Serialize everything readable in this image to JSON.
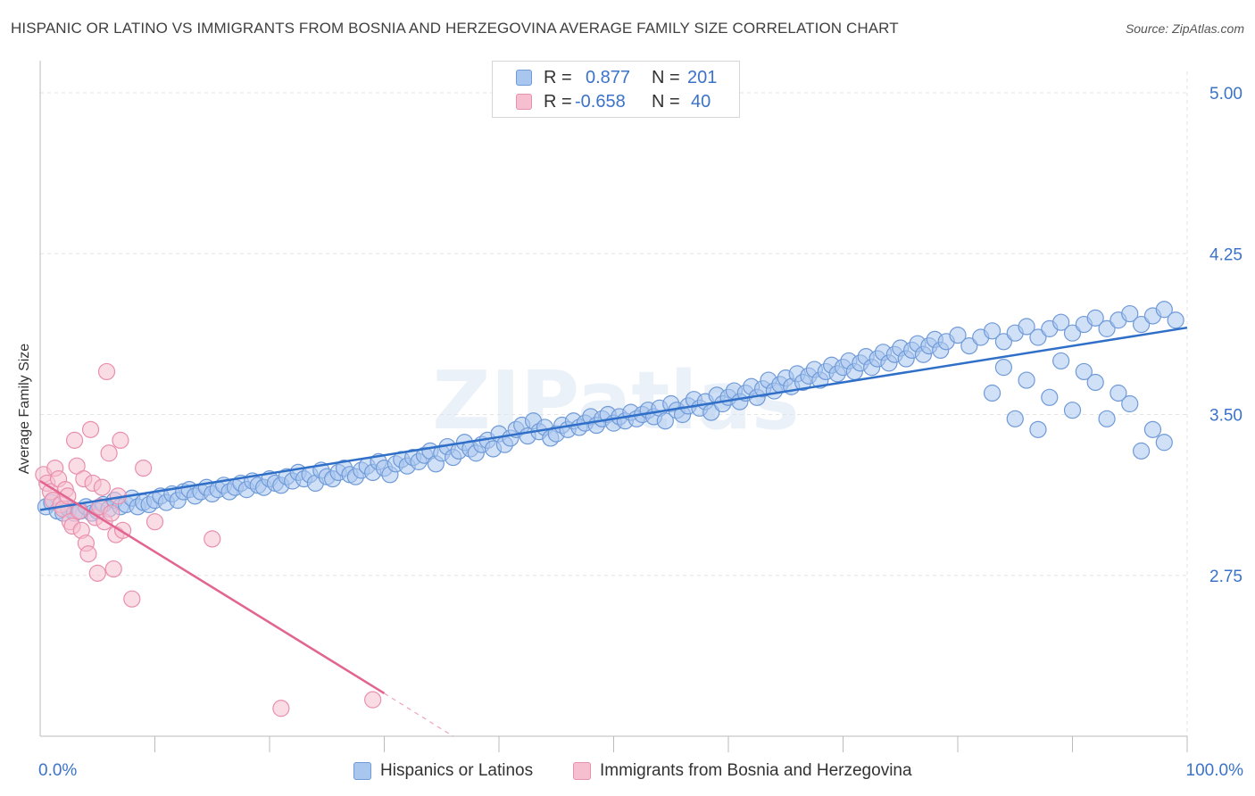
{
  "header": {
    "title": "HISPANIC OR LATINO VS IMMIGRANTS FROM BOSNIA AND HERZEGOVINA AVERAGE FAMILY SIZE CORRELATION CHART",
    "source": "Source: ZipAtlas.com"
  },
  "watermark": "ZIPatlas",
  "stats_legend": {
    "r_label": "R =",
    "n_label": "N =",
    "rows": [
      {
        "r": "0.877",
        "n": "201"
      },
      {
        "r": "-0.658",
        "n": "40"
      }
    ]
  },
  "colors": {
    "blue_fill": "#a9c6ef",
    "blue_stroke": "#6f9ad8",
    "blue_line": "#2f6fc8",
    "pink_fill": "#f6bfd0",
    "pink_stroke": "#e98fae",
    "pink_line": "#e26591",
    "axis_text": "#3b73c9"
  },
  "chart_data": {
    "type": "scatter",
    "title": "HISPANIC OR LATINO VS IMMIGRANTS FROM BOSNIA AND HERZEGOVINA AVERAGE FAMILY SIZE CORRELATION CHART",
    "xlabel": "",
    "ylabel": "Average Family Size",
    "xlim": [
      0,
      100
    ],
    "ylim": [
      2.0,
      5.1
    ],
    "x_tick_labels": [
      "0.0%",
      "100.0%"
    ],
    "y_ticks": [
      2.75,
      3.5,
      4.25,
      5.0
    ],
    "y_tick_labels": [
      "2.75",
      "3.50",
      "4.25",
      "5.00"
    ],
    "grid": true,
    "legend_position": "bottom-center",
    "series": [
      {
        "name": "Hispanics or Latinos",
        "color": "#a9c6ef",
        "trend": {
          "x": [
            0,
            100
          ],
          "y": [
            3.055,
            3.905
          ]
        },
        "points": [
          [
            0.5,
            3.07
          ],
          [
            1,
            3.09
          ],
          [
            1.5,
            3.05
          ],
          [
            2,
            3.04
          ],
          [
            2.5,
            3.06
          ],
          [
            3,
            3.04
          ],
          [
            3.5,
            3.05
          ],
          [
            4,
            3.07
          ],
          [
            4.5,
            3.04
          ],
          [
            5,
            3.05
          ],
          [
            5.5,
            3.08
          ],
          [
            6,
            3.06
          ],
          [
            6.5,
            3.1
          ],
          [
            7,
            3.07
          ],
          [
            7.5,
            3.08
          ],
          [
            8,
            3.11
          ],
          [
            8.5,
            3.07
          ],
          [
            9,
            3.09
          ],
          [
            9.5,
            3.08
          ],
          [
            10,
            3.1
          ],
          [
            10.5,
            3.12
          ],
          [
            11,
            3.09
          ],
          [
            11.5,
            3.13
          ],
          [
            12,
            3.1
          ],
          [
            12.5,
            3.14
          ],
          [
            13,
            3.15
          ],
          [
            13.5,
            3.12
          ],
          [
            14,
            3.14
          ],
          [
            14.5,
            3.16
          ],
          [
            15,
            3.13
          ],
          [
            15.5,
            3.15
          ],
          [
            16,
            3.17
          ],
          [
            16.5,
            3.14
          ],
          [
            17,
            3.16
          ],
          [
            17.5,
            3.18
          ],
          [
            18,
            3.15
          ],
          [
            18.5,
            3.19
          ],
          [
            19,
            3.17
          ],
          [
            19.5,
            3.16
          ],
          [
            20,
            3.2
          ],
          [
            20.5,
            3.18
          ],
          [
            21,
            3.17
          ],
          [
            21.5,
            3.21
          ],
          [
            22,
            3.19
          ],
          [
            22.5,
            3.23
          ],
          [
            23,
            3.2
          ],
          [
            23.5,
            3.22
          ],
          [
            24,
            3.18
          ],
          [
            24.5,
            3.24
          ],
          [
            25,
            3.21
          ],
          [
            25.5,
            3.2
          ],
          [
            26,
            3.23
          ],
          [
            26.5,
            3.25
          ],
          [
            27,
            3.22
          ],
          [
            27.5,
            3.21
          ],
          [
            28,
            3.24
          ],
          [
            28.5,
            3.26
          ],
          [
            29,
            3.23
          ],
          [
            29.5,
            3.28
          ],
          [
            30,
            3.25
          ],
          [
            30.5,
            3.22
          ],
          [
            31,
            3.27
          ],
          [
            31.5,
            3.29
          ],
          [
            32,
            3.26
          ],
          [
            32.5,
            3.3
          ],
          [
            33,
            3.28
          ],
          [
            33.5,
            3.31
          ],
          [
            34,
            3.33
          ],
          [
            34.5,
            3.27
          ],
          [
            35,
            3.32
          ],
          [
            35.5,
            3.35
          ],
          [
            36,
            3.3
          ],
          [
            36.5,
            3.33
          ],
          [
            37,
            3.37
          ],
          [
            37.5,
            3.34
          ],
          [
            38,
            3.32
          ],
          [
            38.5,
            3.36
          ],
          [
            39,
            3.38
          ],
          [
            39.5,
            3.34
          ],
          [
            40,
            3.41
          ],
          [
            40.5,
            3.36
          ],
          [
            41,
            3.39
          ],
          [
            41.5,
            3.43
          ],
          [
            42,
            3.45
          ],
          [
            42.5,
            3.4
          ],
          [
            43,
            3.47
          ],
          [
            43.5,
            3.42
          ],
          [
            44,
            3.44
          ],
          [
            44.5,
            3.39
          ],
          [
            45,
            3.41
          ],
          [
            45.5,
            3.45
          ],
          [
            46,
            3.43
          ],
          [
            46.5,
            3.47
          ],
          [
            47,
            3.44
          ],
          [
            47.5,
            3.46
          ],
          [
            48,
            3.49
          ],
          [
            48.5,
            3.45
          ],
          [
            49,
            3.48
          ],
          [
            49.5,
            3.5
          ],
          [
            50,
            3.46
          ],
          [
            50.5,
            3.49
          ],
          [
            51,
            3.47
          ],
          [
            51.5,
            3.51
          ],
          [
            52,
            3.48
          ],
          [
            52.5,
            3.5
          ],
          [
            53,
            3.52
          ],
          [
            53.5,
            3.49
          ],
          [
            54,
            3.53
          ],
          [
            54.5,
            3.47
          ],
          [
            55,
            3.55
          ],
          [
            55.5,
            3.52
          ],
          [
            56,
            3.5
          ],
          [
            56.5,
            3.54
          ],
          [
            57,
            3.57
          ],
          [
            57.5,
            3.53
          ],
          [
            58,
            3.56
          ],
          [
            58.5,
            3.51
          ],
          [
            59,
            3.59
          ],
          [
            59.5,
            3.55
          ],
          [
            60,
            3.58
          ],
          [
            60.5,
            3.61
          ],
          [
            61,
            3.56
          ],
          [
            61.5,
            3.6
          ],
          [
            62,
            3.63
          ],
          [
            62.5,
            3.58
          ],
          [
            63,
            3.62
          ],
          [
            63.5,
            3.66
          ],
          [
            64,
            3.61
          ],
          [
            64.5,
            3.64
          ],
          [
            65,
            3.67
          ],
          [
            65.5,
            3.63
          ],
          [
            66,
            3.69
          ],
          [
            66.5,
            3.65
          ],
          [
            67,
            3.68
          ],
          [
            67.5,
            3.71
          ],
          [
            68,
            3.66
          ],
          [
            68.5,
            3.7
          ],
          [
            69,
            3.73
          ],
          [
            69.5,
            3.69
          ],
          [
            70,
            3.72
          ],
          [
            70.5,
            3.75
          ],
          [
            71,
            3.7
          ],
          [
            71.5,
            3.74
          ],
          [
            72,
            3.77
          ],
          [
            72.5,
            3.72
          ],
          [
            73,
            3.76
          ],
          [
            73.5,
            3.79
          ],
          [
            74,
            3.74
          ],
          [
            74.5,
            3.78
          ],
          [
            75,
            3.81
          ],
          [
            75.5,
            3.76
          ],
          [
            76,
            3.8
          ],
          [
            76.5,
            3.83
          ],
          [
            77,
            3.78
          ],
          [
            77.5,
            3.82
          ],
          [
            78,
            3.85
          ],
          [
            78.5,
            3.8
          ],
          [
            79,
            3.84
          ],
          [
            80,
            3.87
          ],
          [
            81,
            3.82
          ],
          [
            82,
            3.86
          ],
          [
            83,
            3.89
          ],
          [
            84,
            3.84
          ],
          [
            85,
            3.88
          ],
          [
            86,
            3.91
          ],
          [
            87,
            3.86
          ],
          [
            88,
            3.9
          ],
          [
            89,
            3.93
          ],
          [
            90,
            3.88
          ],
          [
            91,
            3.92
          ],
          [
            92,
            3.95
          ],
          [
            93,
            3.9
          ],
          [
            94,
            3.94
          ],
          [
            95,
            3.97
          ],
          [
            96,
            3.92
          ],
          [
            97,
            3.96
          ],
          [
            98,
            3.99
          ],
          [
            99,
            3.94
          ],
          [
            97,
            3.43
          ],
          [
            98,
            3.37
          ],
          [
            96,
            3.33
          ],
          [
            95,
            3.55
          ],
          [
            94,
            3.6
          ],
          [
            93,
            3.48
          ],
          [
            92,
            3.65
          ],
          [
            91,
            3.7
          ],
          [
            90,
            3.52
          ],
          [
            89,
            3.75
          ],
          [
            88,
            3.58
          ],
          [
            87,
            3.43
          ],
          [
            86,
            3.66
          ],
          [
            85,
            3.48
          ],
          [
            84,
            3.72
          ],
          [
            83,
            3.6
          ]
        ]
      },
      {
        "name": "Immigrants from Bosnia and Herzegovina",
        "color": "#f6bfd0",
        "trend": {
          "x": [
            0,
            30
          ],
          "y": [
            3.19,
            2.2
          ],
          "dash_to": {
            "x": 36,
            "y": 2.0
          }
        },
        "points": [
          [
            0.3,
            3.22
          ],
          [
            0.6,
            3.18
          ],
          [
            0.9,
            3.14
          ],
          [
            1.1,
            3.1
          ],
          [
            1.3,
            3.25
          ],
          [
            1.6,
            3.2
          ],
          [
            1.8,
            3.08
          ],
          [
            2,
            3.06
          ],
          [
            2.2,
            3.15
          ],
          [
            2.4,
            3.12
          ],
          [
            2.6,
            3.0
          ],
          [
            2.8,
            2.98
          ],
          [
            3,
            3.38
          ],
          [
            3.2,
            3.26
          ],
          [
            3.4,
            3.05
          ],
          [
            3.6,
            2.96
          ],
          [
            3.8,
            3.2
          ],
          [
            4,
            2.9
          ],
          [
            4.2,
            2.85
          ],
          [
            4.4,
            3.43
          ],
          [
            4.6,
            3.18
          ],
          [
            4.8,
            3.02
          ],
          [
            5,
            2.76
          ],
          [
            5.2,
            3.07
          ],
          [
            5.4,
            3.16
          ],
          [
            5.6,
            3.0
          ],
          [
            5.8,
            3.7
          ],
          [
            6,
            3.32
          ],
          [
            6.2,
            3.04
          ],
          [
            6.4,
            2.78
          ],
          [
            6.6,
            2.94
          ],
          [
            6.8,
            3.12
          ],
          [
            7,
            3.38
          ],
          [
            7.2,
            2.96
          ],
          [
            8,
            2.64
          ],
          [
            9,
            3.25
          ],
          [
            10,
            3.0
          ],
          [
            15,
            2.92
          ],
          [
            21,
            2.13
          ],
          [
            29,
            2.17
          ]
        ]
      }
    ]
  },
  "bottom_legend": [
    {
      "label": "Hispanics or Latinos"
    },
    {
      "label": "Immigrants from Bosnia and Herzegovina"
    }
  ]
}
